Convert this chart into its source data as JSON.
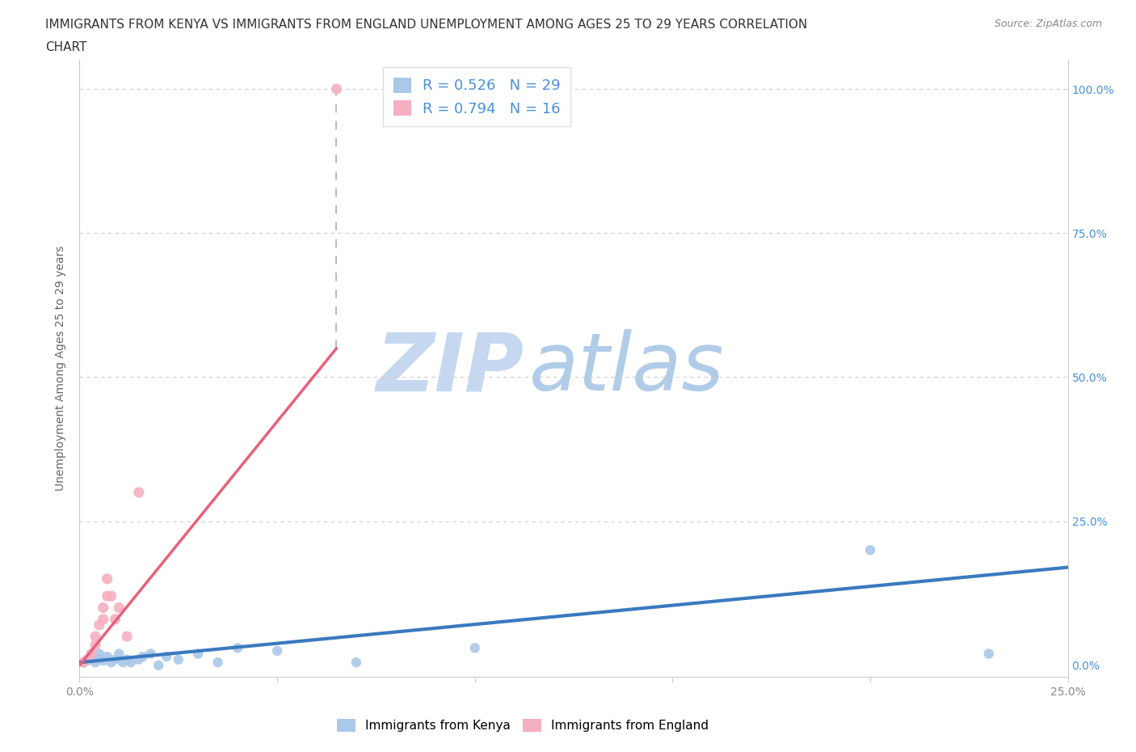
{
  "title_line1": "IMMIGRANTS FROM KENYA VS IMMIGRANTS FROM ENGLAND UNEMPLOYMENT AMONG AGES 25 TO 29 YEARS CORRELATION",
  "title_line2": "CHART",
  "source_text": "Source: ZipAtlas.com",
  "ylabel": "Unemployment Among Ages 25 to 29 years",
  "xlim": [
    0.0,
    0.25
  ],
  "ylim": [
    -0.02,
    1.05
  ],
  "legend_kenya": "R = 0.526   N = 29",
  "legend_england": "R = 0.794   N = 16",
  "kenya_color": "#aac8e8",
  "england_color": "#f5afc0",
  "kenya_line_color": "#3a7abf",
  "england_line_color": "#e8607a",
  "kenya_scatter_x": [
    0.001,
    0.002,
    0.003,
    0.003,
    0.004,
    0.005,
    0.005,
    0.006,
    0.007,
    0.008,
    0.009,
    0.01,
    0.011,
    0.012,
    0.013,
    0.015,
    0.016,
    0.018,
    0.02,
    0.022,
    0.025,
    0.03,
    0.035,
    0.04,
    0.05,
    0.07,
    0.1,
    0.2,
    0.23
  ],
  "kenya_scatter_y": [
    0.005,
    0.008,
    0.01,
    0.015,
    0.005,
    0.01,
    0.02,
    0.008,
    0.015,
    0.005,
    0.01,
    0.02,
    0.005,
    0.01,
    0.005,
    0.01,
    0.015,
    0.02,
    0.0,
    0.015,
    0.01,
    0.02,
    0.005,
    0.03,
    0.025,
    0.005,
    0.03,
    0.2,
    0.02
  ],
  "england_scatter_x": [
    0.001,
    0.002,
    0.003,
    0.004,
    0.004,
    0.005,
    0.006,
    0.006,
    0.007,
    0.007,
    0.008,
    0.009,
    0.01,
    0.012,
    0.015,
    0.065
  ],
  "england_scatter_y": [
    0.005,
    0.01,
    0.02,
    0.035,
    0.05,
    0.07,
    0.08,
    0.1,
    0.12,
    0.15,
    0.12,
    0.08,
    0.1,
    0.05,
    0.3,
    1.0
  ],
  "kenya_line_x": [
    0.0,
    0.25
  ],
  "kenya_line_y": [
    0.005,
    0.17
  ],
  "england_line_x": [
    0.0,
    0.065
  ],
  "england_line_y": [
    0.0,
    0.55
  ],
  "dashed_line_x": [
    0.065,
    0.065
  ],
  "dashed_line_y": [
    0.55,
    1.0
  ],
  "watermark_zip": "ZIP",
  "watermark_atlas": "atlas",
  "watermark_color_zip": "#c5d8f0",
  "watermark_color_atlas": "#b0cce8",
  "background_color": "#ffffff",
  "title_fontsize": 11,
  "axis_label_fontsize": 10,
  "legend_text_color": "#4a90d9",
  "source_color": "#888888",
  "grid_color": "#cccccc",
  "axis_color": "#cccccc",
  "tick_color": "#888888"
}
